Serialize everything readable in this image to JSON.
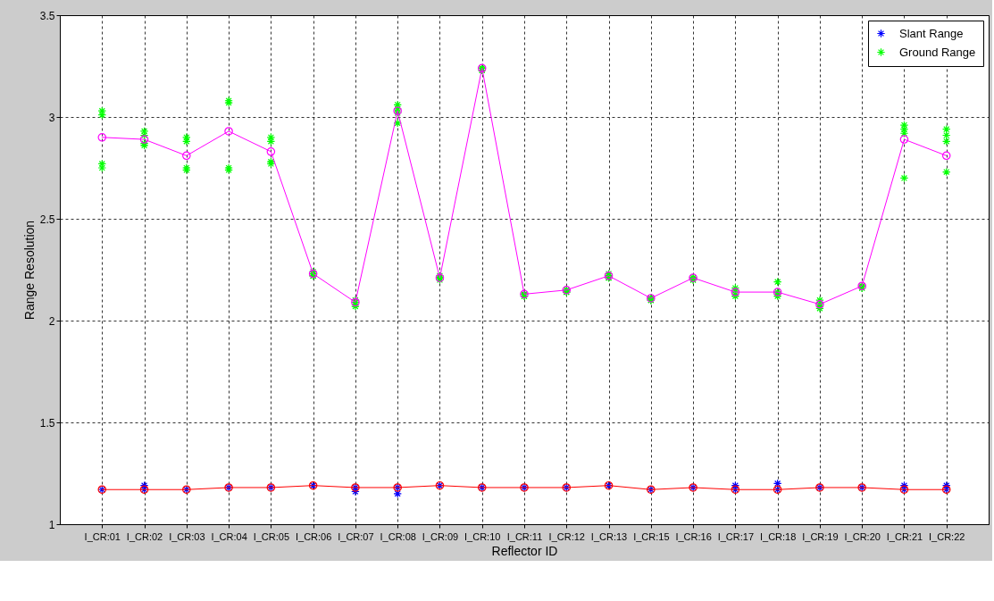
{
  "chart_data": {
    "type": "line",
    "xlabel": "Reflector ID",
    "ylabel": "Range Resolution",
    "categories": [
      "I_CR:01",
      "I_CR:02",
      "I_CR:03",
      "I_CR:04",
      "I_CR:05",
      "I_CR:06",
      "I_CR:07",
      "I_CR:08",
      "I_CR:09",
      "I_CR:10",
      "I_CR:11",
      "I_CR:12",
      "I_CR:13",
      "I_CR:15",
      "I_CR:16",
      "I_CR:17",
      "I_CR:18",
      "I_CR:19",
      "I_CR:20",
      "I_CR:21",
      "I_CR:22"
    ],
    "ylim": [
      1,
      3.5
    ],
    "yticks": [
      1,
      1.5,
      2,
      2.5,
      3,
      3.5
    ],
    "grid": true,
    "legend": "top right",
    "line_style": "solid",
    "series": [
      {
        "name": "Slant Range",
        "type": "scatter",
        "marker": "cross",
        "color": "#0000ff",
        "x": [
          "I_CR:01",
          "I_CR:02",
          "I_CR:02",
          "I_CR:03",
          "I_CR:04",
          "I_CR:05",
          "I_CR:06",
          "I_CR:07",
          "I_CR:07",
          "I_CR:08",
          "I_CR:08",
          "I_CR:09",
          "I_CR:10",
          "I_CR:11",
          "I_CR:12",
          "I_CR:13",
          "I_CR:15",
          "I_CR:16",
          "I_CR:17",
          "I_CR:17",
          "I_CR:18",
          "I_CR:18",
          "I_CR:19",
          "I_CR:20",
          "I_CR:21",
          "I_CR:21",
          "I_CR:22",
          "I_CR:22"
        ],
        "values": [
          1.17,
          1.17,
          1.19,
          1.17,
          1.18,
          1.18,
          1.19,
          1.18,
          1.16,
          1.18,
          1.15,
          1.19,
          1.18,
          1.18,
          1.18,
          1.19,
          1.17,
          1.18,
          1.17,
          1.19,
          1.17,
          1.2,
          1.18,
          1.18,
          1.17,
          1.19,
          1.17,
          1.19
        ]
      },
      {
        "name": "Ground Range",
        "type": "scatter",
        "marker": "cross",
        "color": "#00ff00",
        "x": [
          "I_CR:01",
          "I_CR:01",
          "I_CR:01",
          "I_CR:01",
          "I_CR:02",
          "I_CR:02",
          "I_CR:02",
          "I_CR:02",
          "I_CR:03",
          "I_CR:03",
          "I_CR:03",
          "I_CR:03",
          "I_CR:04",
          "I_CR:04",
          "I_CR:04",
          "I_CR:04",
          "I_CR:05",
          "I_CR:05",
          "I_CR:05",
          "I_CR:05",
          "I_CR:06",
          "I_CR:06",
          "I_CR:06",
          "I_CR:06",
          "I_CR:07",
          "I_CR:07",
          "I_CR:07",
          "I_CR:07",
          "I_CR:08",
          "I_CR:08",
          "I_CR:08",
          "I_CR:08",
          "I_CR:09",
          "I_CR:09",
          "I_CR:09",
          "I_CR:09",
          "I_CR:10",
          "I_CR:10",
          "I_CR:10",
          "I_CR:10",
          "I_CR:11",
          "I_CR:11",
          "I_CR:11",
          "I_CR:11",
          "I_CR:12",
          "I_CR:12",
          "I_CR:12",
          "I_CR:12",
          "I_CR:13",
          "I_CR:13",
          "I_CR:13",
          "I_CR:13",
          "I_CR:15",
          "I_CR:15",
          "I_CR:15",
          "I_CR:15",
          "I_CR:16",
          "I_CR:16",
          "I_CR:16",
          "I_CR:16",
          "I_CR:17",
          "I_CR:17",
          "I_CR:17",
          "I_CR:17",
          "I_CR:18",
          "I_CR:18",
          "I_CR:18",
          "I_CR:18",
          "I_CR:19",
          "I_CR:19",
          "I_CR:19",
          "I_CR:19",
          "I_CR:20",
          "I_CR:20",
          "I_CR:20",
          "I_CR:20",
          "I_CR:21",
          "I_CR:21",
          "I_CR:21",
          "I_CR:21",
          "I_CR:22",
          "I_CR:22",
          "I_CR:22",
          "I_CR:22"
        ],
        "values": [
          3.03,
          3.01,
          2.77,
          2.75,
          2.93,
          2.91,
          2.87,
          2.86,
          2.9,
          2.88,
          2.75,
          2.74,
          3.08,
          3.07,
          2.75,
          2.74,
          2.9,
          2.88,
          2.78,
          2.77,
          2.24,
          2.23,
          2.22,
          2.22,
          2.1,
          2.09,
          2.08,
          2.07,
          3.06,
          3.04,
          3.02,
          2.97,
          2.22,
          2.21,
          2.21,
          2.2,
          3.24,
          3.24,
          3.23,
          3.23,
          2.13,
          2.13,
          2.12,
          2.12,
          2.15,
          2.15,
          2.14,
          2.14,
          2.23,
          2.22,
          2.21,
          2.21,
          2.11,
          2.11,
          2.1,
          2.1,
          2.21,
          2.21,
          2.2,
          2.2,
          2.16,
          2.15,
          2.13,
          2.12,
          2.19,
          2.14,
          2.13,
          2.12,
          2.1,
          2.08,
          2.07,
          2.06,
          2.17,
          2.17,
          2.16,
          2.16,
          2.96,
          2.94,
          2.92,
          2.7,
          2.94,
          2.91,
          2.88,
          2.73
        ]
      },
      {
        "marker": "circle",
        "color": "#ff00ff",
        "values": [
          2.9,
          2.89,
          2.81,
          2.93,
          2.83,
          2.23,
          2.09,
          3.03,
          2.21,
          3.24,
          2.13,
          2.15,
          2.22,
          2.11,
          2.21,
          2.14,
          2.14,
          2.08,
          2.17,
          2.89,
          2.81
        ]
      },
      {
        "marker": "circle",
        "color": "#ff0000",
        "values": [
          1.17,
          1.17,
          1.17,
          1.18,
          1.18,
          1.19,
          1.18,
          1.18,
          1.19,
          1.18,
          1.18,
          1.18,
          1.19,
          1.17,
          1.18,
          1.17,
          1.17,
          1.18,
          1.18,
          1.17,
          1.17
        ]
      }
    ]
  }
}
